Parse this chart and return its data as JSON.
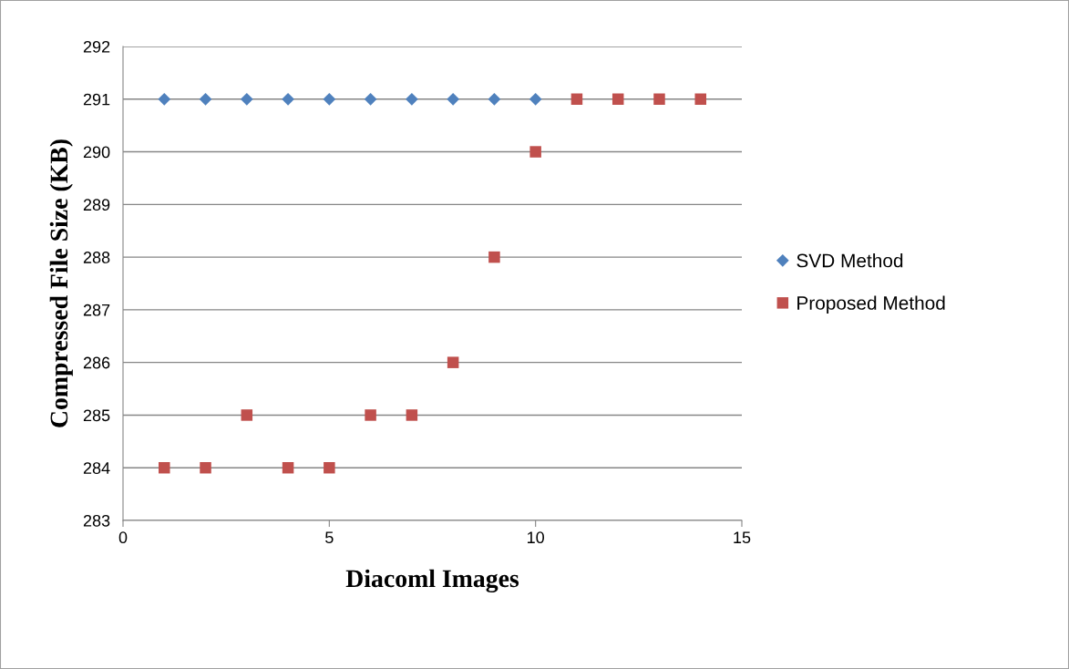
{
  "chart_data": {
    "type": "scatter",
    "xlabel": "Diacoml Images",
    "ylabel": "Compressed File Size (KB)",
    "xlim": [
      0,
      15
    ],
    "xticks": [
      0,
      5,
      10,
      15
    ],
    "ylim": [
      283,
      292
    ],
    "yticks": [
      283,
      284,
      285,
      286,
      287,
      288,
      289,
      290,
      291,
      292
    ],
    "grid": "y",
    "legend": "right",
    "series": [
      {
        "name": "SVD Method",
        "color": "#4f81bd",
        "marker": "diamond",
        "x": [
          1,
          2,
          3,
          4,
          5,
          6,
          7,
          8,
          9,
          10
        ],
        "values": [
          291,
          291,
          291,
          291,
          291,
          291,
          291,
          291,
          291,
          291
        ]
      },
      {
        "name": "Proposed Method",
        "color": "#c0504d",
        "marker": "square",
        "x": [
          1,
          2,
          3,
          4,
          5,
          6,
          7,
          8,
          9,
          10,
          11,
          12,
          13,
          14
        ],
        "values": [
          284,
          284,
          285,
          284,
          284,
          285,
          285,
          286,
          288,
          290,
          291,
          291,
          291,
          291
        ]
      }
    ]
  }
}
